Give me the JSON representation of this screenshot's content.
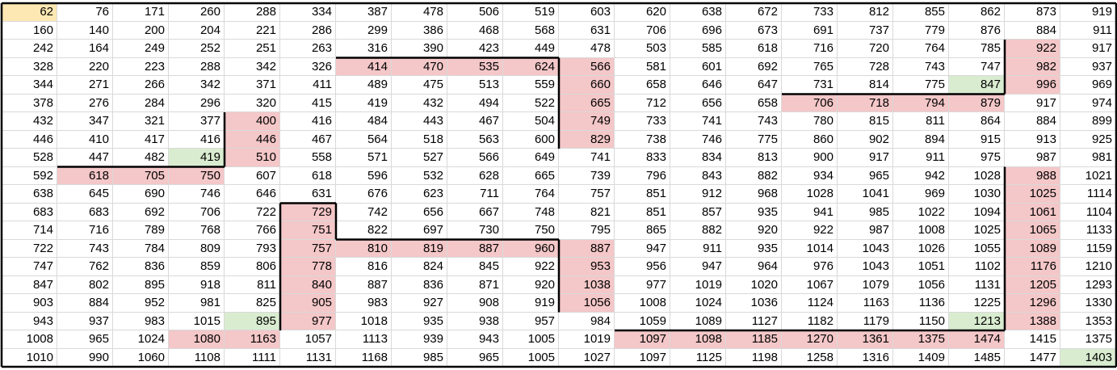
{
  "grid": {
    "rows": [
      [
        62,
        76,
        171,
        260,
        288,
        334,
        387,
        478,
        506,
        519,
        603,
        620,
        638,
        672,
        733,
        812,
        855,
        862,
        873,
        919
      ],
      [
        160,
        140,
        200,
        204,
        221,
        286,
        299,
        386,
        468,
        568,
        631,
        706,
        696,
        673,
        691,
        737,
        779,
        876,
        884,
        911
      ],
      [
        242,
        164,
        249,
        252,
        251,
        263,
        316,
        390,
        423,
        449,
        478,
        503,
        585,
        618,
        716,
        720,
        764,
        785,
        922,
        917
      ],
      [
        328,
        220,
        223,
        288,
        342,
        326,
        414,
        470,
        535,
        624,
        566,
        581,
        601,
        692,
        765,
        728,
        743,
        747,
        982,
        937
      ],
      [
        344,
        271,
        266,
        342,
        371,
        411,
        489,
        475,
        513,
        559,
        660,
        658,
        646,
        647,
        731,
        814,
        775,
        847,
        996,
        969
      ],
      [
        378,
        276,
        284,
        296,
        320,
        415,
        419,
        432,
        494,
        522,
        665,
        712,
        656,
        658,
        706,
        718,
        794,
        879,
        917,
        974
      ],
      [
        432,
        347,
        321,
        377,
        400,
        416,
        484,
        443,
        467,
        504,
        749,
        733,
        741,
        743,
        780,
        815,
        811,
        864,
        884,
        899
      ],
      [
        446,
        410,
        417,
        416,
        446,
        467,
        564,
        518,
        563,
        600,
        829,
        738,
        746,
        775,
        860,
        902,
        894,
        915,
        913,
        925
      ],
      [
        528,
        447,
        482,
        419,
        510,
        558,
        571,
        527,
        566,
        649,
        741,
        833,
        834,
        813,
        900,
        917,
        911,
        975,
        987,
        981
      ],
      [
        592,
        618,
        705,
        750,
        607,
        618,
        596,
        532,
        628,
        665,
        739,
        796,
        843,
        882,
        934,
        965,
        942,
        1028,
        988,
        1021
      ],
      [
        638,
        645,
        690,
        746,
        646,
        631,
        676,
        623,
        711,
        764,
        757,
        851,
        912,
        968,
        1028,
        1041,
        969,
        1030,
        1025,
        1114
      ],
      [
        683,
        683,
        692,
        706,
        722,
        729,
        742,
        656,
        667,
        748,
        821,
        851,
        857,
        935,
        941,
        985,
        1022,
        1094,
        1061,
        1104
      ],
      [
        714,
        716,
        789,
        768,
        766,
        751,
        822,
        697,
        730,
        750,
        795,
        865,
        882,
        920,
        922,
        987,
        1008,
        1025,
        1065,
        1133
      ],
      [
        722,
        743,
        784,
        809,
        793,
        757,
        810,
        819,
        887,
        960,
        887,
        947,
        911,
        935,
        1014,
        1043,
        1026,
        1055,
        1089,
        1159
      ],
      [
        747,
        762,
        836,
        859,
        806,
        778,
        816,
        824,
        845,
        922,
        953,
        956,
        947,
        964,
        976,
        1043,
        1051,
        1102,
        1176,
        1210
      ],
      [
        847,
        802,
        895,
        918,
        811,
        840,
        887,
        836,
        871,
        920,
        1038,
        977,
        1019,
        1020,
        1067,
        1079,
        1056,
        1131,
        1205,
        1293
      ],
      [
        903,
        884,
        952,
        981,
        825,
        905,
        983,
        927,
        908,
        919,
        1056,
        1008,
        1024,
        1036,
        1124,
        1163,
        1136,
        1225,
        1296,
        1330
      ],
      [
        943,
        937,
        983,
        1015,
        895,
        977,
        1018,
        935,
        938,
        957,
        984,
        1059,
        1089,
        1127,
        1182,
        1179,
        1150,
        1213,
        1388,
        1353
      ],
      [
        1008,
        965,
        1024,
        1080,
        1163,
        1057,
        1113,
        939,
        943,
        1005,
        1019,
        1097,
        1098,
        1185,
        1270,
        1361,
        1375,
        1474,
        1415,
        1375
      ],
      [
        1010,
        990,
        1060,
        1108,
        1111,
        1131,
        1168,
        985,
        965,
        1005,
        1027,
        1097,
        1125,
        1198,
        1258,
        1316,
        1409,
        1485,
        1477,
        1403
      ]
    ],
    "highlights": {
      "red": [
        [
          3,
          6
        ],
        [
          3,
          7
        ],
        [
          3,
          8
        ],
        [
          3,
          9
        ],
        [
          3,
          10
        ],
        [
          4,
          10
        ],
        [
          5,
          10
        ],
        [
          6,
          10
        ],
        [
          7,
          10
        ],
        [
          2,
          18
        ],
        [
          3,
          18
        ],
        [
          4,
          18
        ],
        [
          5,
          14
        ],
        [
          5,
          15
        ],
        [
          5,
          16
        ],
        [
          5,
          17
        ],
        [
          6,
          4
        ],
        [
          7,
          4
        ],
        [
          8,
          4
        ],
        [
          9,
          1
        ],
        [
          9,
          2
        ],
        [
          9,
          3
        ],
        [
          9,
          18
        ],
        [
          10,
          18
        ],
        [
          11,
          18
        ],
        [
          12,
          18
        ],
        [
          13,
          18
        ],
        [
          14,
          18
        ],
        [
          15,
          18
        ],
        [
          16,
          18
        ],
        [
          17,
          18
        ],
        [
          11,
          5
        ],
        [
          12,
          5
        ],
        [
          13,
          5
        ],
        [
          14,
          5
        ],
        [
          15,
          5
        ],
        [
          16,
          5
        ],
        [
          17,
          5
        ],
        [
          13,
          6
        ],
        [
          13,
          7
        ],
        [
          13,
          8
        ],
        [
          13,
          9
        ],
        [
          13,
          10
        ],
        [
          14,
          10
        ],
        [
          15,
          10
        ],
        [
          16,
          10
        ],
        [
          18,
          3
        ],
        [
          18,
          4
        ],
        [
          18,
          11
        ],
        [
          18,
          12
        ],
        [
          18,
          13
        ],
        [
          18,
          14
        ],
        [
          18,
          15
        ],
        [
          18,
          16
        ],
        [
          18,
          17
        ]
      ],
      "green": [
        [
          4,
          17
        ],
        [
          8,
          3
        ],
        [
          17,
          4
        ],
        [
          17,
          17
        ],
        [
          19,
          19
        ]
      ],
      "yellow": [
        [
          0,
          0
        ]
      ]
    },
    "colors": {
      "red": "#f4c7c8",
      "green": "#d9ecd0",
      "yellow": "#fde8b3",
      "gridline": "#d9d9d9",
      "border": "#000000"
    }
  }
}
